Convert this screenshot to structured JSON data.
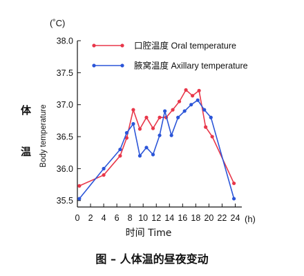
{
  "chart_data": {
    "type": "line",
    "y_unit": "(˚C)",
    "x_unit": "(h)",
    "ylabel_cn": "体\n温",
    "ylabel_en": "Body temperature",
    "xlabel": "时间 Time",
    "ylim": [
      35.4,
      38.0
    ],
    "xlim": [
      0,
      25
    ],
    "y_ticks": [
      "38.0",
      "37.5",
      "37.0",
      "36.5",
      "36.0",
      "35.5"
    ],
    "x_ticks": [
      "0",
      "2",
      "4",
      "6",
      "8",
      "10",
      "12",
      "14",
      "16",
      "18",
      "20",
      "22",
      "24"
    ],
    "legend_position": "top-right",
    "series": [
      {
        "name": "口腔温度 Oral temperature",
        "color": "#e8374a",
        "x": [
          0.3,
          4,
          6.5,
          7.5,
          8.5,
          9.5,
          10.5,
          11.5,
          12.5,
          13.5,
          14.5,
          15.5,
          16.5,
          17.5,
          18.5,
          19.5,
          20.5,
          23.8
        ],
        "y": [
          35.73,
          35.9,
          36.2,
          36.48,
          36.92,
          36.62,
          36.8,
          36.63,
          36.8,
          36.8,
          36.92,
          37.05,
          37.23,
          37.14,
          37.22,
          36.65,
          36.5,
          35.77
        ]
      },
      {
        "name": "腋窝温度 Axillary temperature",
        "color": "#2b55d8",
        "x": [
          0.3,
          4,
          6.5,
          7.5,
          8.5,
          9.5,
          10.5,
          11.5,
          12.5,
          13.3,
          14.3,
          15.3,
          16.3,
          17.3,
          18.3,
          19.3,
          20.3,
          23.8
        ],
        "y": [
          35.53,
          36.0,
          36.3,
          36.56,
          36.7,
          36.2,
          36.33,
          36.22,
          36.52,
          36.9,
          36.52,
          36.8,
          36.9,
          37.0,
          37.07,
          36.92,
          36.8,
          35.53
        ]
      }
    ]
  },
  "caption": "图 – 人体温的昼夜变动"
}
